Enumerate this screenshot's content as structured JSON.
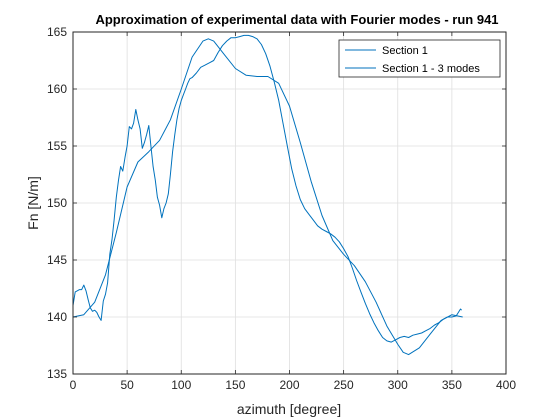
{
  "chart_data": {
    "type": "line",
    "title": "Approximation of experimental data with Fourier modes - run 941",
    "xlabel": "azimuth [degree]",
    "ylabel": "Fn [N/m]",
    "xlim": [
      0,
      400
    ],
    "ylim": [
      135,
      165
    ],
    "xticks": [
      0,
      50,
      100,
      150,
      200,
      250,
      300,
      350,
      400
    ],
    "yticks": [
      135,
      140,
      145,
      150,
      155,
      160,
      165
    ],
    "grid": true,
    "legend_position": "top-right",
    "line_color": "#0072BD",
    "series": [
      {
        "name": "Section 1",
        "x": [
          0,
          2,
          4,
          6,
          8,
          10,
          12,
          14,
          16,
          18,
          20,
          22,
          24,
          26,
          28,
          30,
          32,
          34,
          36,
          38,
          40,
          42,
          44,
          46,
          48,
          50,
          52,
          54,
          56,
          58,
          60,
          62,
          64,
          66,
          68,
          70,
          72,
          74,
          76,
          78,
          80,
          82,
          84,
          86,
          88,
          90,
          92,
          94,
          96,
          98,
          100,
          102,
          104,
          106,
          108,
          110,
          114,
          118,
          122,
          126,
          130,
          134,
          138,
          142,
          146,
          150,
          154,
          158,
          162,
          166,
          170,
          174,
          178,
          182,
          186,
          190,
          194,
          198,
          202,
          206,
          210,
          214,
          218,
          222,
          226,
          230,
          234,
          238,
          242,
          246,
          250,
          254,
          258,
          262,
          266,
          270,
          274,
          278,
          282,
          286,
          290,
          294,
          298,
          302,
          306,
          310,
          314,
          318,
          322,
          326,
          330,
          334,
          338,
          342,
          346,
          350,
          354,
          356,
          358,
          359
        ],
        "y": [
          141.0,
          142.2,
          142.3,
          142.4,
          142.4,
          142.8,
          142.3,
          141.5,
          140.8,
          140.5,
          140.6,
          140.4,
          140.0,
          139.7,
          141.4,
          142.0,
          143.0,
          145.5,
          146.8,
          148.5,
          150.5,
          152.0,
          153.2,
          152.8,
          154.0,
          155.0,
          156.7,
          156.5,
          157.0,
          158.2,
          157.3,
          156.5,
          154.8,
          155.3,
          156.0,
          156.8,
          155.0,
          153.2,
          152.0,
          150.5,
          149.8,
          148.7,
          149.5,
          150.0,
          150.8,
          152.5,
          154.5,
          156.0,
          157.3,
          158.3,
          159.0,
          159.5,
          160.0,
          160.5,
          160.9,
          161.0,
          161.4,
          161.9,
          162.1,
          162.3,
          162.5,
          163.2,
          163.8,
          164.2,
          164.5,
          164.5,
          164.6,
          164.7,
          164.7,
          164.6,
          164.4,
          163.9,
          163.1,
          162.0,
          160.6,
          159.0,
          157.0,
          155.0,
          153.0,
          151.5,
          150.3,
          149.5,
          149.0,
          148.5,
          148.0,
          147.7,
          147.5,
          147.3,
          147.0,
          146.6,
          146.0,
          145.3,
          144.3,
          143.2,
          142.2,
          141.2,
          140.3,
          139.5,
          138.8,
          138.2,
          137.9,
          137.8,
          138.0,
          138.2,
          138.3,
          138.2,
          138.4,
          138.5,
          138.6,
          138.8,
          139.0,
          139.3,
          139.5,
          139.8,
          140.0,
          140.0,
          140.1,
          140.4,
          140.7,
          140.6
        ]
      },
      {
        "name": "Section 1 - 3 modes",
        "x": [
          0,
          10,
          20,
          30,
          40,
          50,
          60,
          70,
          80,
          90,
          100,
          110,
          120,
          125,
          130,
          140,
          150,
          160,
          170,
          180,
          190,
          200,
          210,
          220,
          230,
          240,
          250,
          260,
          270,
          280,
          290,
          300,
          305,
          310,
          320,
          330,
          340,
          350,
          355,
          360
        ],
        "y": [
          140.0,
          140.2,
          141.3,
          143.7,
          147.4,
          151.4,
          153.6,
          154.5,
          155.5,
          157.3,
          160.0,
          162.8,
          164.2,
          164.4,
          164.2,
          163.0,
          161.8,
          161.2,
          161.1,
          161.1,
          160.5,
          158.5,
          155.3,
          151.9,
          148.9,
          146.7,
          145.5,
          144.5,
          143.1,
          141.3,
          139.2,
          137.6,
          136.9,
          136.7,
          137.3,
          138.5,
          139.7,
          140.2,
          140.1,
          140.0
        ]
      }
    ]
  }
}
